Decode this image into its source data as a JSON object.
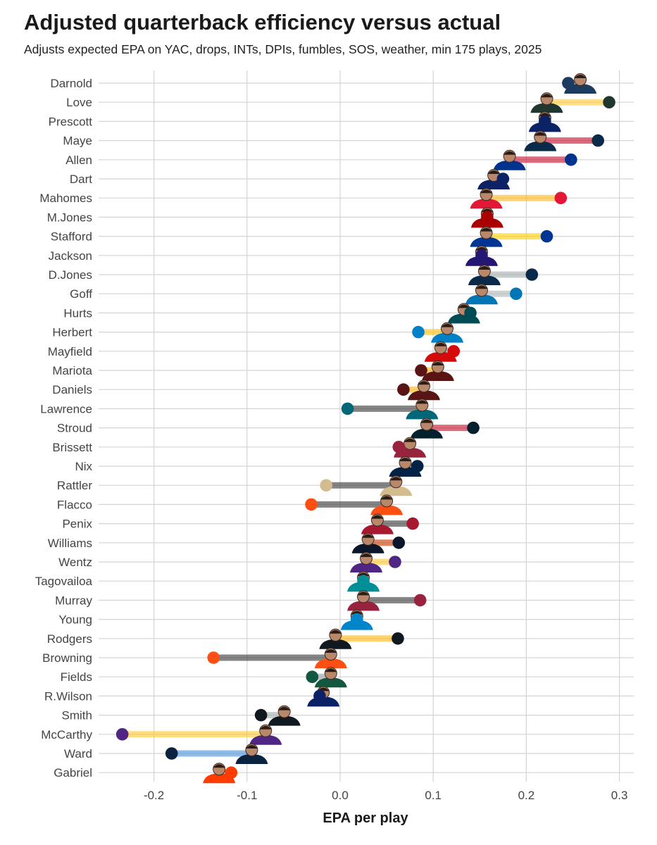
{
  "title": "Adjusted quarterback efficiency versus actual",
  "subtitle": "Adjusts expected EPA on YAC, drops, INTs, DPIs, fumbles, SOS, weather, min 175 plays, 2025",
  "chart_data": {
    "type": "dumbbell",
    "title": "Adjusted quarterback efficiency versus actual",
    "xlabel": "EPA per play",
    "ylabel": "",
    "xlim": [
      -0.26,
      0.315
    ],
    "x_ticks": [
      -0.2,
      -0.1,
      0.0,
      0.1,
      0.2,
      0.3
    ],
    "x_tick_labels": [
      "-0.2",
      "-0.1",
      "0.0",
      "0.1",
      "0.2",
      "0.3"
    ],
    "grid": true,
    "rows": [
      {
        "name": "Darnold",
        "adjusted": 0.258,
        "actual": 0.245,
        "color": "#1d3a5f",
        "line": "#9aa0a6"
      },
      {
        "name": "Love",
        "adjusted": 0.222,
        "actual": 0.289,
        "color": "#203731",
        "line": "#ffcc33"
      },
      {
        "name": "Prescott",
        "adjusted": 0.22,
        "actual": 0.22,
        "color": "#0b2265",
        "line": "#9aa0a6"
      },
      {
        "name": "Maye",
        "adjusted": 0.215,
        "actual": 0.277,
        "color": "#0b2a4a",
        "line": "#c8102e"
      },
      {
        "name": "Allen",
        "adjusted": 0.182,
        "actual": 0.248,
        "color": "#00338d",
        "line": "#c8102e"
      },
      {
        "name": "Dart",
        "adjusted": 0.165,
        "actual": 0.175,
        "color": "#0b2265",
        "line": "#9aa0a6"
      },
      {
        "name": "Mahomes",
        "adjusted": 0.157,
        "actual": 0.237,
        "color": "#e31837",
        "line": "#ffb81c"
      },
      {
        "name": "M.Jones",
        "adjusted": 0.158,
        "actual": 0.158,
        "color": "#aa0000",
        "line": "#9aa0a6"
      },
      {
        "name": "Stafford",
        "adjusted": 0.157,
        "actual": 0.222,
        "color": "#003594",
        "line": "#ffd100"
      },
      {
        "name": "Jackson",
        "adjusted": 0.152,
        "actual": 0.152,
        "color": "#241773",
        "line": "#9aa0a6"
      },
      {
        "name": "D.Jones",
        "adjusted": 0.155,
        "actual": 0.206,
        "color": "#0b2a4a",
        "line": "#a5acaf"
      },
      {
        "name": "Goff",
        "adjusted": 0.152,
        "actual": 0.189,
        "color": "#0076b6",
        "line": "#b0b7bc"
      },
      {
        "name": "Hurts",
        "adjusted": 0.133,
        "actual": 0.14,
        "color": "#004c54",
        "line": "#9aa0a6"
      },
      {
        "name": "Herbert",
        "adjusted": 0.115,
        "actual": 0.084,
        "color": "#0080c6",
        "line": "#ffc20e"
      },
      {
        "name": "Mayfield",
        "adjusted": 0.108,
        "actual": 0.122,
        "color": "#d50a0a",
        "line": "#9aa0a6"
      },
      {
        "name": "Mariota",
        "adjusted": 0.105,
        "actual": 0.087,
        "color": "#5a1414",
        "line": "#ffb612"
      },
      {
        "name": "Daniels",
        "adjusted": 0.09,
        "actual": 0.068,
        "color": "#5a1414",
        "line": "#ffb612"
      },
      {
        "name": "Lawrence",
        "adjusted": 0.088,
        "actual": 0.008,
        "color": "#006778",
        "line": "#3a3a3a"
      },
      {
        "name": "Stroud",
        "adjusted": 0.093,
        "actual": 0.143,
        "color": "#03202f",
        "line": "#c8102e"
      },
      {
        "name": "Brissett",
        "adjusted": 0.075,
        "actual": 0.063,
        "color": "#97233f",
        "line": "#9aa0a6"
      },
      {
        "name": "Nix",
        "adjusted": 0.07,
        "actual": 0.083,
        "color": "#002244",
        "line": "#9aa0a6"
      },
      {
        "name": "Rattler",
        "adjusted": 0.06,
        "actual": -0.015,
        "color": "#d3bc8d",
        "line": "#3a3a3a"
      },
      {
        "name": "Flacco",
        "adjusted": 0.05,
        "actual": -0.031,
        "color": "#fb4f14",
        "line": "#3a3a3a"
      },
      {
        "name": "Penix",
        "adjusted": 0.04,
        "actual": 0.078,
        "color": "#a71930",
        "line": "#3a3a3a"
      },
      {
        "name": "Williams",
        "adjusted": 0.03,
        "actual": 0.063,
        "color": "#0b162a",
        "line": "#c83803"
      },
      {
        "name": "Wentz",
        "adjusted": 0.028,
        "actual": 0.059,
        "color": "#4f2683",
        "line": "#ffc62f"
      },
      {
        "name": "Tagovailoa",
        "adjusted": 0.025,
        "actual": 0.025,
        "color": "#008e97",
        "line": "#9aa0a6"
      },
      {
        "name": "Murray",
        "adjusted": 0.025,
        "actual": 0.086,
        "color": "#97233f",
        "line": "#3a3a3a"
      },
      {
        "name": "Young",
        "adjusted": 0.018,
        "actual": 0.018,
        "color": "#0085ca",
        "line": "#9aa0a6"
      },
      {
        "name": "Rodgers",
        "adjusted": -0.005,
        "actual": 0.062,
        "color": "#101820",
        "line": "#ffb612"
      },
      {
        "name": "Browning",
        "adjusted": -0.01,
        "actual": -0.136,
        "color": "#fb4f14",
        "line": "#3a3a3a"
      },
      {
        "name": "Fields",
        "adjusted": -0.01,
        "actual": -0.03,
        "color": "#125740",
        "line": "#9aa0a6"
      },
      {
        "name": "R.Wilson",
        "adjusted": -0.018,
        "actual": -0.022,
        "color": "#0b2265",
        "line": "#9aa0a6"
      },
      {
        "name": "Smith",
        "adjusted": -0.06,
        "actual": -0.085,
        "color": "#101820",
        "line": "#a5acaf"
      },
      {
        "name": "McCarthy",
        "adjusted": -0.08,
        "actual": -0.234,
        "color": "#4f2683",
        "line": "#ffc62f"
      },
      {
        "name": "Ward",
        "adjusted": -0.095,
        "actual": -0.181,
        "color": "#0c2340",
        "line": "#4b92db"
      },
      {
        "name": "Gabriel",
        "adjusted": -0.13,
        "actual": -0.117,
        "color": "#ff3c00",
        "line": "#9aa0a6"
      }
    ]
  }
}
